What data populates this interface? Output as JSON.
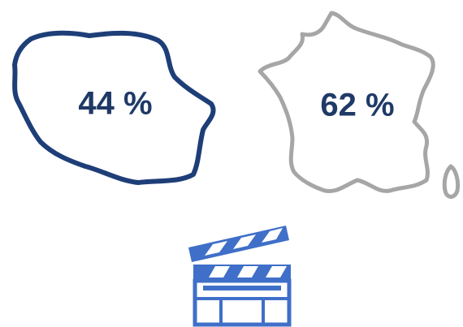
{
  "stats": [
    {
      "label": "44 %"
    },
    {
      "label": "62 %"
    }
  ]
}
